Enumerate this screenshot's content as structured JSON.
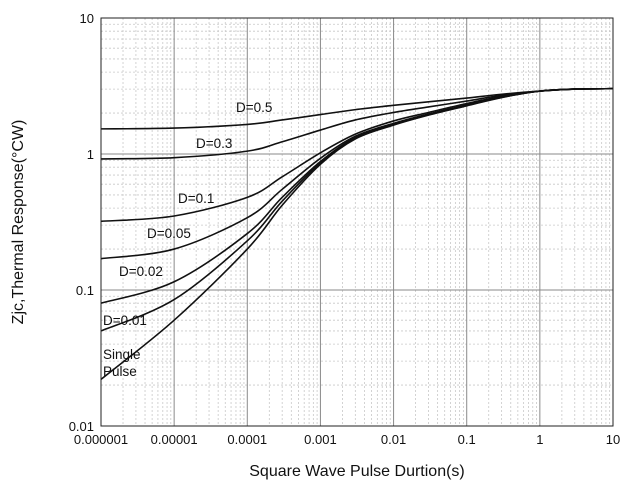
{
  "chart_data": {
    "type": "line",
    "xlabel": "Square Wave Pulse Durtion(s)",
    "ylabel": "Zjc,Thermal Response(°CW)",
    "xscale": "log",
    "yscale": "log",
    "xlim": [
      1e-06,
      10
    ],
    "ylim": [
      0.01,
      10
    ],
    "grid": true,
    "x_tick_labels": [
      "0.000001",
      "0.00001",
      "0.0001",
      "0.001",
      "0.01",
      "0.1",
      "1",
      "10"
    ],
    "y_tick_labels": [
      "0.01",
      "0.1",
      "1",
      "10"
    ],
    "x": [
      1e-06,
      1e-05,
      0.0001,
      0.0003,
      0.001,
      0.003,
      0.01,
      0.03,
      0.1,
      0.3,
      1,
      3,
      10
    ],
    "series": [
      {
        "name": "D=0.5",
        "label": "D=0.5",
        "values": [
          1.53,
          1.55,
          1.65,
          1.78,
          1.95,
          2.12,
          2.28,
          2.42,
          2.58,
          2.75,
          2.9,
          3.0,
          3.02
        ]
      },
      {
        "name": "D=0.3",
        "label": "D=0.3",
        "values": [
          0.92,
          0.94,
          1.05,
          1.23,
          1.5,
          1.78,
          2.02,
          2.22,
          2.45,
          2.7,
          2.9,
          3.0,
          3.02
        ]
      },
      {
        "name": "D=0.1",
        "label": "D=0.1",
        "values": [
          0.32,
          0.35,
          0.48,
          0.68,
          1.02,
          1.4,
          1.75,
          2.02,
          2.35,
          2.65,
          2.9,
          3.0,
          3.02
        ]
      },
      {
        "name": "D=0.05",
        "label": "D=0.05",
        "values": [
          0.17,
          0.2,
          0.34,
          0.55,
          0.93,
          1.35,
          1.68,
          1.97,
          2.3,
          2.63,
          2.9,
          3.0,
          3.02
        ]
      },
      {
        "name": "D=0.02",
        "label": "D=0.02",
        "values": [
          0.08,
          0.115,
          0.26,
          0.48,
          0.88,
          1.32,
          1.66,
          1.95,
          2.28,
          2.62,
          2.9,
          3.0,
          3.02
        ]
      },
      {
        "name": "D=0.01",
        "label": "D=0.01",
        "values": [
          0.05,
          0.085,
          0.23,
          0.45,
          0.86,
          1.3,
          1.64,
          1.94,
          2.27,
          2.61,
          2.9,
          3.0,
          3.02
        ]
      },
      {
        "name": "Single Pulse",
        "label": [
          "Single",
          "Pulse"
        ],
        "values": [
          0.022,
          0.06,
          0.2,
          0.42,
          0.84,
          1.29,
          1.63,
          1.93,
          2.26,
          2.6,
          2.9,
          3.0,
          3.02
        ]
      }
    ]
  }
}
